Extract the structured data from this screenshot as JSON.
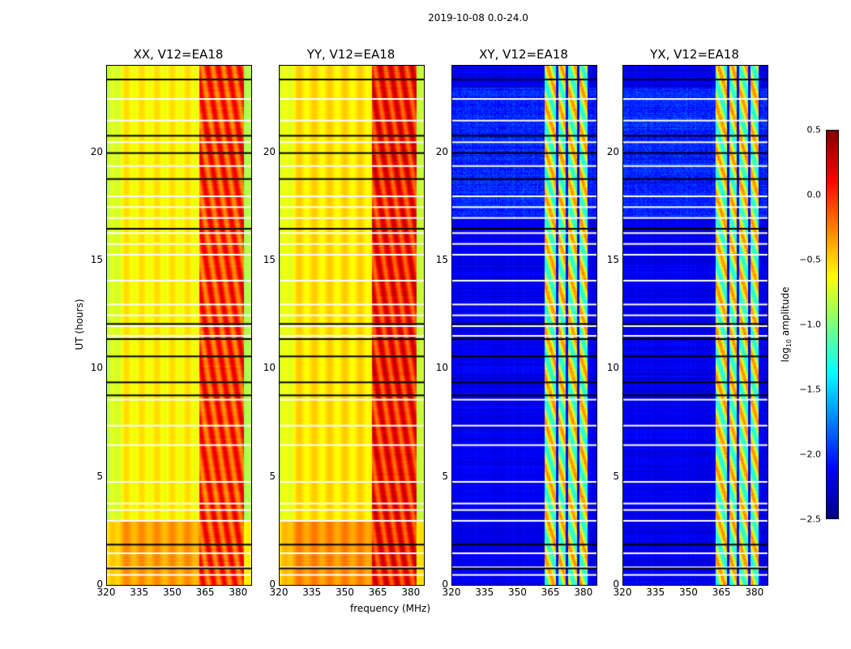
{
  "chart_data": {
    "type": "heatmap",
    "title": "2019-10-08 0.0-24.0",
    "xlabel": "frequency (MHz)",
    "ylabel": "UT (hours)",
    "xlim": [
      320,
      385.6
    ],
    "ylim": [
      0,
      24
    ],
    "xticks": [
      "320",
      "335",
      "350",
      "365",
      "380"
    ],
    "yticks": [
      "0",
      "5",
      "10",
      "15",
      "20"
    ],
    "colorbar": {
      "label_main": "log",
      "label_sub": "10",
      "label_rest": " amplitude",
      "range": [
        -2.5,
        0.5
      ],
      "ticks": [
        "0.5",
        "0.0",
        "−0.5",
        "−1.0",
        "−1.5",
        "−2.0",
        "−2.5"
      ],
      "colormap": "jet"
    },
    "panels": [
      {
        "title": "XX, V12=EA18",
        "base_log_amp": -0.6,
        "band_log_amp": -0.1,
        "band_mhz": [
          362,
          382
        ]
      },
      {
        "title": "YY, V12=EA18",
        "base_log_amp": -0.55,
        "band_log_amp": 0.0,
        "band_mhz": [
          362,
          382
        ]
      },
      {
        "title": "XY, V12=EA18",
        "base_log_amp": -2.3,
        "band_log_amp": -0.9,
        "band_mhz": [
          362,
          382
        ]
      },
      {
        "title": "YX, V12=EA18",
        "base_log_amp": -2.3,
        "band_log_amp": -0.9,
        "band_mhz": [
          362,
          382
        ]
      }
    ],
    "flagged_times_hours": [
      0.5,
      0.85,
      1.5,
      3.0,
      3.5,
      3.8,
      4.8,
      6.5,
      7.4,
      8.6,
      11.55,
      12.0,
      12.5,
      13.0,
      14.1,
      15.3,
      15.8,
      16.3,
      17.0,
      17.5,
      18.0,
      19.4,
      20.5,
      21.5,
      22.5
    ],
    "gap_times_hours": [
      0.8,
      1.9,
      8.8,
      9.4,
      10.6,
      11.4,
      12.1,
      16.5,
      18.8,
      20.0,
      20.8,
      23.4
    ]
  }
}
